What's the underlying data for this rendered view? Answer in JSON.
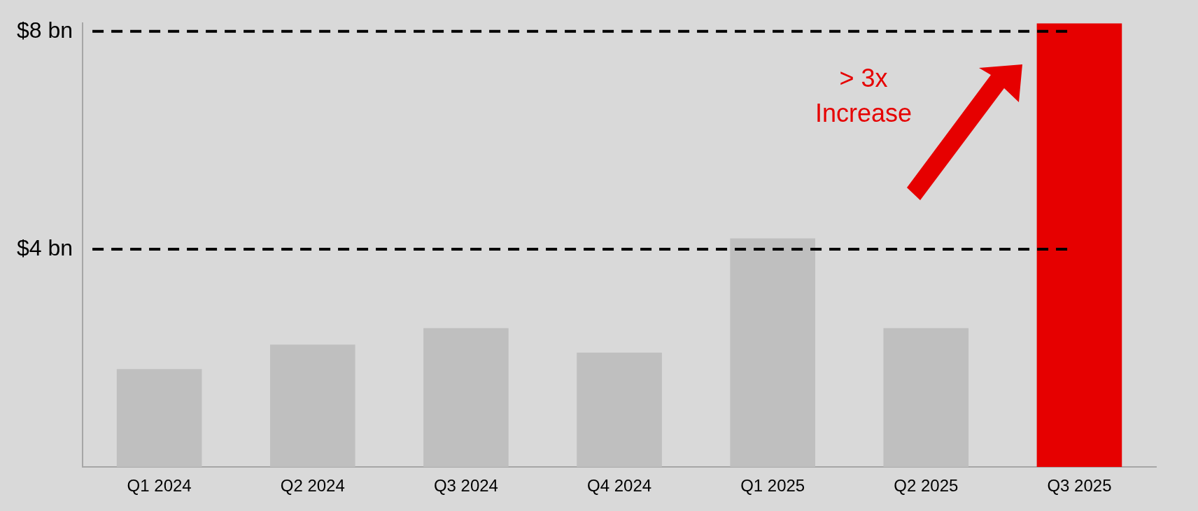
{
  "chart_data": {
    "type": "bar",
    "categories": [
      "Q1 2024",
      "Q2 2024",
      "Q3 2024",
      "Q4 2024",
      "Q1 2025",
      "Q2 2025",
      "Q3 2025"
    ],
    "values": [
      1.8,
      2.25,
      2.55,
      2.1,
      4.2,
      2.55,
      8.15
    ],
    "colors": [
      "#bfbfbf",
      "#bfbfbf",
      "#bfbfbf",
      "#bfbfbf",
      "#bfbfbf",
      "#bfbfbf",
      "#e60000"
    ],
    "ylim": [
      0,
      8.15
    ],
    "yticks": [
      {
        "value": 4,
        "label": "$4 bn"
      },
      {
        "value": 8,
        "label": "$8 bn"
      }
    ],
    "line_style": "dashed",
    "annotations": [
      "> 3x\nIncrease"
    ],
    "grid": "y",
    "legend": false
  }
}
